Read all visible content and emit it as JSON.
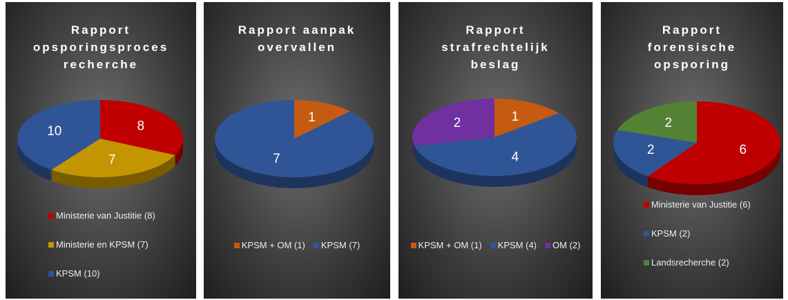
{
  "chart_data": [
    {
      "type": "pie",
      "title": "Rapport opsporingsproces recherche",
      "categories": [
        "Ministerie van Justitie (8)",
        "Ministerie en KPSM (7)",
        "KPSM (10)"
      ],
      "values": [
        8,
        7,
        10
      ],
      "colors": [
        "#c00000",
        "#c39500",
        "#2f5597"
      ],
      "legend": "bottom"
    },
    {
      "type": "pie",
      "title": "Rapport aanpak overvallen",
      "categories": [
        "KPSM + OM (1)",
        "KPSM (7)"
      ],
      "values": [
        1,
        7
      ],
      "colors": [
        "#c55a11",
        "#2f5597"
      ],
      "legend": "bottom"
    },
    {
      "type": "pie",
      "title": "Rapport strafrechtelijk beslag",
      "categories": [
        "KPSM + OM (1)",
        "KPSM (4)",
        "OM (2)"
      ],
      "values": [
        1,
        4,
        2
      ],
      "colors": [
        "#c55a11",
        "#2f5597",
        "#7030a0"
      ],
      "legend": "bottom"
    },
    {
      "type": "pie",
      "title": "Rapport forensische opsporing",
      "categories": [
        "Ministerie van Justitie (6)",
        "KPSM (2)",
        "Landsrecherche (2)"
      ],
      "values": [
        6,
        2,
        2
      ],
      "colors": [
        "#c00000",
        "#2f5597",
        "#548235"
      ],
      "legend": "bottom"
    }
  ]
}
